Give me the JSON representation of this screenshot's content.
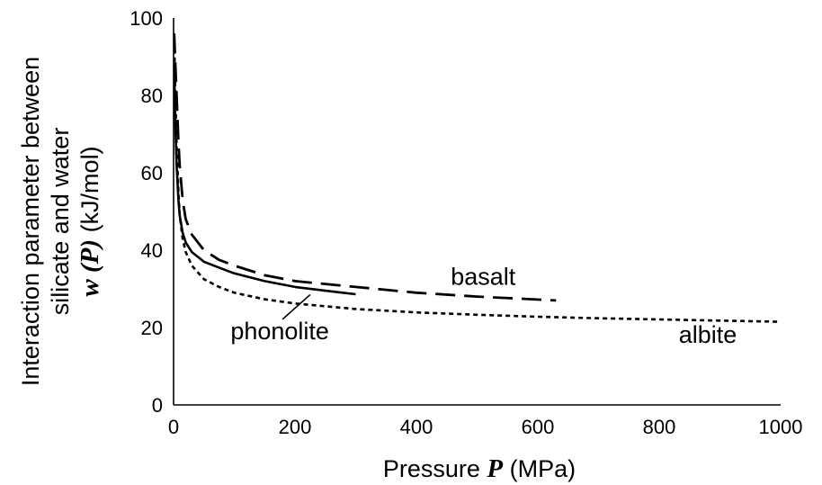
{
  "chart_data": {
    "type": "line",
    "xlabel": {
      "prefix": "Pressure ",
      "symbol": "P",
      "suffix": " (MPa)"
    },
    "ylabel": {
      "line1": "Interaction parameter between",
      "line2": "silicate and water",
      "line3_symbol": "w (P)",
      "line3_suffix": " (kJ/mol)"
    },
    "xlim": [
      0,
      1000
    ],
    "ylim": [
      0,
      100
    ],
    "xticks": [
      "0",
      "200",
      "400",
      "600",
      "800",
      "1000"
    ],
    "yticks": [
      "0",
      "20",
      "40",
      "60",
      "80",
      "100"
    ],
    "grid": false,
    "legend": "none",
    "series": [
      {
        "name": "albite",
        "style": "dotted",
        "color": "#000000",
        "x": [
          1,
          3,
          5,
          8,
          10,
          15,
          20,
          30,
          50,
          75,
          100,
          150,
          200,
          300,
          400,
          500,
          600,
          700,
          800,
          900,
          1000
        ],
        "y": [
          94,
          80,
          67,
          55,
          49,
          43,
          39.5,
          36,
          32.5,
          30.5,
          29,
          27.3,
          26.2,
          24.8,
          23.9,
          23.3,
          22.8,
          22.4,
          22.1,
          21.8,
          21.5
        ]
      },
      {
        "name": "phonolite",
        "style": "solid",
        "color": "#000000",
        "x": [
          1,
          3,
          5,
          8,
          10,
          15,
          20,
          30,
          50,
          75,
          100,
          150,
          200,
          250,
          300
        ],
        "y": [
          87,
          72,
          62,
          53,
          49,
          44.5,
          42,
          39.5,
          37,
          35.5,
          34,
          32,
          30.5,
          29.5,
          28.6
        ]
      },
      {
        "name": "basalt",
        "style": "dashed",
        "color": "#000000",
        "x": [
          1,
          3,
          5,
          8,
          10,
          15,
          20,
          30,
          50,
          75,
          100,
          150,
          200,
          300,
          400,
          500,
          630
        ],
        "y": [
          96,
          88,
          80,
          68,
          62,
          53,
          48,
          44,
          40,
          37.5,
          36,
          33.5,
          32,
          30.5,
          29,
          28,
          27
        ]
      }
    ],
    "annotations": [
      {
        "series": "basalt",
        "text": "basalt",
        "x": 510,
        "y": 31
      },
      {
        "series": "phonolite",
        "text": "phonolite",
        "x": 175,
        "y": 17,
        "pointer_to": {
          "x": 225,
          "y": 28.5
        }
      },
      {
        "series": "albite",
        "text": "albite",
        "x": 880,
        "y": 16
      }
    ]
  }
}
